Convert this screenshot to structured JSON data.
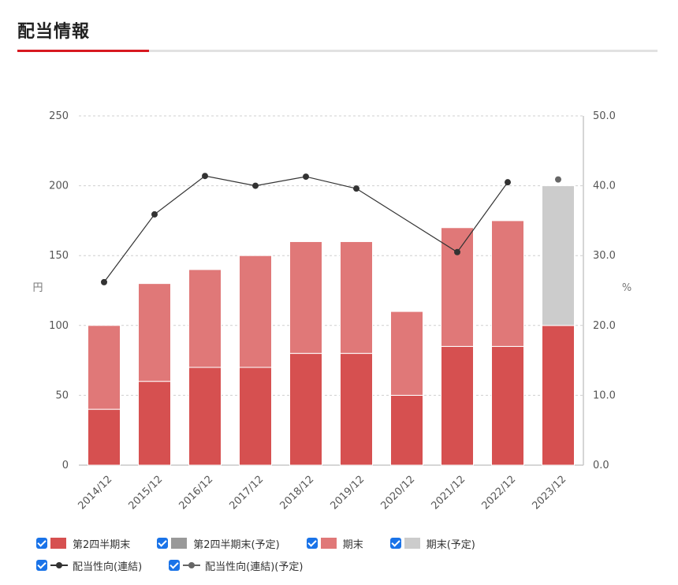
{
  "page": {
    "title": "配当情報"
  },
  "colors": {
    "accent": "#d71920",
    "q2": "#d65050",
    "q2_plan": "#999999",
    "year_end": "#e07878",
    "year_end_plan": "#cccccc",
    "payout_line": "#333333",
    "payout_plan": "#666666"
  },
  "chart_data": {
    "type": "bar",
    "stacked": true,
    "categories": [
      "2014/12",
      "2015/12",
      "2016/12",
      "2017/12",
      "2018/12",
      "2019/12",
      "2020/12",
      "2021/12",
      "2022/12",
      "2023/12"
    ],
    "series": [
      {
        "name": "第2四半期末",
        "axis": "left",
        "values": [
          40,
          60,
          70,
          70,
          80,
          80,
          50,
          85,
          85,
          100
        ]
      },
      {
        "name": "第2四半期末(予定)",
        "axis": "left",
        "values": [
          0,
          0,
          0,
          0,
          0,
          0,
          0,
          0,
          0,
          0
        ]
      },
      {
        "name": "期末",
        "axis": "left",
        "values": [
          60,
          70,
          70,
          80,
          80,
          80,
          60,
          85,
          90,
          0
        ]
      },
      {
        "name": "期末(予定)",
        "axis": "left",
        "values": [
          0,
          0,
          0,
          0,
          0,
          0,
          0,
          0,
          0,
          100
        ]
      },
      {
        "name": "配当性向(連結)",
        "axis": "right",
        "type": "line",
        "values": [
          26.2,
          35.9,
          41.4,
          40.0,
          41.3,
          39.6,
          null,
          30.5,
          40.5,
          null
        ]
      },
      {
        "name": "配当性向(連結)(予定)",
        "axis": "right",
        "type": "line",
        "values": [
          null,
          null,
          null,
          null,
          null,
          null,
          null,
          null,
          null,
          40.9
        ]
      }
    ],
    "y_left": {
      "label": "円",
      "min": 0,
      "max": 250,
      "ticks": [
        "0",
        "50",
        "100",
        "150",
        "200",
        "250"
      ]
    },
    "y_right": {
      "label": "%",
      "min": 0,
      "max": 50,
      "ticks": [
        "0.0",
        "10.0",
        "20.0",
        "30.0",
        "40.0",
        "50.0"
      ]
    },
    "grid": true,
    "legend_position": "bottom"
  },
  "legend": {
    "rows": [
      [
        {
          "label": "第2四半期末",
          "kind": "box",
          "color": "#d65050"
        },
        {
          "label": "第2四半期末(予定)",
          "kind": "box",
          "color": "#999999"
        },
        {
          "label": "期末",
          "kind": "box",
          "color": "#e07878"
        },
        {
          "label": "期末(予定)",
          "kind": "box",
          "color": "#cccccc"
        }
      ],
      [
        {
          "label": "配当性向(連結)",
          "kind": "line",
          "color": "#333333"
        },
        {
          "label": "配当性向(連結)(予定)",
          "kind": "line",
          "color": "#666666"
        }
      ]
    ]
  }
}
